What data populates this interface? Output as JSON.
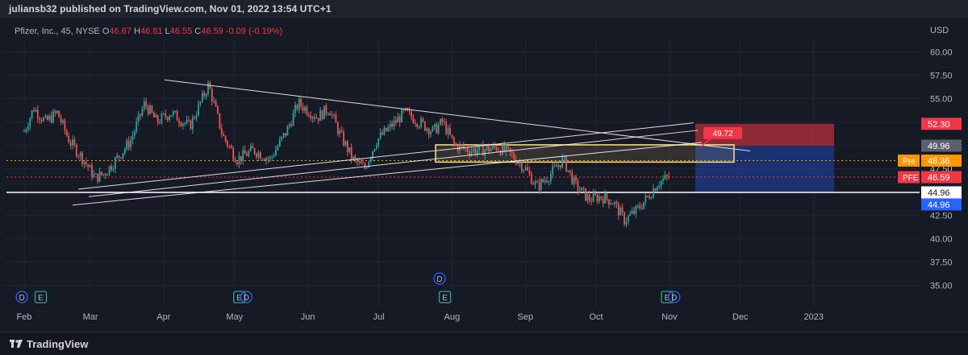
{
  "header": {
    "published": "juliansb32 published on TradingView.com, Nov 01, 2022 13:54 UTC+1"
  },
  "legend": {
    "symbol": "Pfizer, Inc., 45, NYSE",
    "o_label": "O",
    "o_value": "46.67",
    "h_label": "H",
    "h_value": "46.81",
    "l_label": "L",
    "l_value": "46.55",
    "c_label": "C",
    "c_value": "46.59",
    "change": "-0.09 (-0.19%)"
  },
  "currency": "USD",
  "footer": {
    "brand": "TradingView"
  },
  "colors": {
    "up": "#26a69a",
    "down": "#ef5350",
    "background": "#161a25",
    "target_zone": "#c2185b",
    "stop_zone": "#1e3a8a"
  },
  "chart_data": {
    "type": "candlestick",
    "title": "Pfizer, Inc., 45, NYSE",
    "ylim": [
      33.5,
      63
    ],
    "y_ticks": [
      35.0,
      37.5,
      40.0,
      42.5,
      45.0,
      47.5,
      50.0,
      52.5,
      55.0,
      57.5,
      60.0
    ],
    "y_tick_labels": [
      "35.00",
      "37.50",
      "40.00",
      "42.50",
      "45.00",
      "47.50",
      "50.00",
      "52.50",
      "55.00",
      "57.50",
      "60.00"
    ],
    "x_tick_labels": [
      "Feb",
      "Mar",
      "Apr",
      "May",
      "Jun",
      "Jul",
      "Aug",
      "Sep",
      "Oct",
      "Nov",
      "Dec",
      "2023"
    ],
    "price_path": [
      {
        "x": "Feb 01",
        "y": 51.5
      },
      {
        "x": "Feb 05",
        "y": 54.0
      },
      {
        "x": "Feb 10",
        "y": 52.5
      },
      {
        "x": "Feb 15",
        "y": 53.5
      },
      {
        "x": "Feb 20",
        "y": 50.5
      },
      {
        "x": "Feb 26",
        "y": 48.5
      },
      {
        "x": "Mar 03",
        "y": 46.5
      },
      {
        "x": "Mar 07",
        "y": 47.0
      },
      {
        "x": "Mar 12",
        "y": 48.5
      },
      {
        "x": "Mar 18",
        "y": 50.5
      },
      {
        "x": "Mar 24",
        "y": 54.5
      },
      {
        "x": "Mar 29",
        "y": 52.5
      },
      {
        "x": "Apr 04",
        "y": 53.5
      },
      {
        "x": "Apr 12",
        "y": 52.0
      },
      {
        "x": "Apr 20",
        "y": 56.5
      },
      {
        "x": "Apr 26",
        "y": 51.0
      },
      {
        "x": "May 02",
        "y": 48.5
      },
      {
        "x": "May 09",
        "y": 49.5
      },
      {
        "x": "May 16",
        "y": 48.5
      },
      {
        "x": "May 23",
        "y": 51.5
      },
      {
        "x": "May 28",
        "y": 54.5
      },
      {
        "x": "Jun 05",
        "y": 53.0
      },
      {
        "x": "Jun 10",
        "y": 54.0
      },
      {
        "x": "Jun 14",
        "y": 51.5
      },
      {
        "x": "Jun 20",
        "y": 48.5
      },
      {
        "x": "Jun 25",
        "y": 47.5
      },
      {
        "x": "Jun 30",
        "y": 50.5
      },
      {
        "x": "Jul 06",
        "y": 52.0
      },
      {
        "x": "Jul 12",
        "y": 53.5
      },
      {
        "x": "Jul 18",
        "y": 52.5
      },
      {
        "x": "Jul 24",
        "y": 51.5
      },
      {
        "x": "Jul 28",
        "y": 52.5
      },
      {
        "x": "Aug 02",
        "y": 50.0
      },
      {
        "x": "Aug 08",
        "y": 49.5
      },
      {
        "x": "Aug 14",
        "y": 49.5
      },
      {
        "x": "Aug 20",
        "y": 49.8
      },
      {
        "x": "Aug 26",
        "y": 49.0
      },
      {
        "x": "Sep 01",
        "y": 47.5
      },
      {
        "x": "Sep 06",
        "y": 45.5
      },
      {
        "x": "Sep 12",
        "y": 47.0
      },
      {
        "x": "Sep 17",
        "y": 48.5
      },
      {
        "x": "Sep 22",
        "y": 45.8
      },
      {
        "x": "Sep 28",
        "y": 44.2
      },
      {
        "x": "Oct 03",
        "y": 44.5
      },
      {
        "x": "Oct 08",
        "y": 44.0
      },
      {
        "x": "Oct 13",
        "y": 42.0
      },
      {
        "x": "Oct 18",
        "y": 43.0
      },
      {
        "x": "Oct 23",
        "y": 44.5
      },
      {
        "x": "Oct 27",
        "y": 46.0
      },
      {
        "x": "Nov 01",
        "y": 46.6
      }
    ],
    "price_labels": [
      {
        "name": "target",
        "text": "52.30",
        "value": 52.3,
        "color": "#f23645"
      },
      {
        "name": "entry",
        "text": "49.96",
        "value": 49.96,
        "color": "#5d606b"
      },
      {
        "name": "pre",
        "prefix": "Pre",
        "text": "48.36",
        "value": 48.36,
        "color": "#ff9800"
      },
      {
        "name": "last",
        "prefix": "PFE",
        "text": "46.59",
        "value": 46.59,
        "color": "#f23645"
      },
      {
        "name": "support",
        "text": "44.96",
        "value": 44.96,
        "color": "#ffffff"
      },
      {
        "name": "stop",
        "text": "44.96",
        "value": 44.96,
        "color": "#2962ff"
      }
    ],
    "annotation_label": "49.72",
    "event_markers": [
      {
        "type": "D",
        "x": "Jan 31"
      },
      {
        "type": "E",
        "x": "Feb 08"
      },
      {
        "type": "E",
        "x": "May 03"
      },
      {
        "type": "D",
        "x": "May 06"
      },
      {
        "type": "D",
        "x": "Jul 29"
      },
      {
        "type": "E",
        "x": "Jul 29"
      },
      {
        "type": "E",
        "x": "Oct 31"
      },
      {
        "type": "D",
        "x": "Nov 03"
      }
    ]
  }
}
